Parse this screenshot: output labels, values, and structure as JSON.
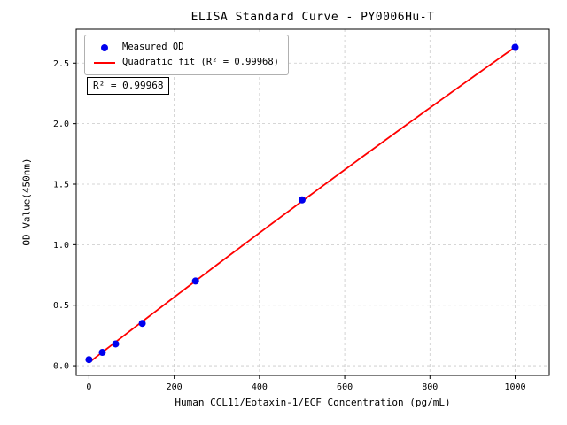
{
  "chart_data": {
    "type": "scatter",
    "title": "ELISA Standard Curve - PY0006Hu-T",
    "xlabel": "Human CCL11/Eotaxin-1/ECF Concentration (pg/mL)",
    "ylabel": "OD Value(450nm)",
    "xlim": [
      -30,
      1080
    ],
    "ylim": [
      -0.08,
      2.78
    ],
    "xticks": [
      0,
      200,
      400,
      600,
      800,
      1000
    ],
    "xticklabels": [
      "0",
      "200",
      "400",
      "600",
      "800",
      "1000"
    ],
    "yticks": [
      0.0,
      0.5,
      1.0,
      1.5,
      2.0,
      2.5
    ],
    "yticklabels": [
      "0.0",
      "0.5",
      "1.0",
      "1.5",
      "2.0",
      "2.5"
    ],
    "grid": true,
    "legend": {
      "position": "upper-left",
      "entries": [
        {
          "label": "Measured OD",
          "marker": "dot",
          "color": "#0000ee"
        },
        {
          "label": "Quadratic fit (R² = 0.99968)",
          "marker": "line",
          "color": "#ff0000"
        }
      ]
    },
    "annotation": "R² = 0.99968",
    "colors": {
      "points": "#0000ee",
      "fit_line": "#ff0000"
    },
    "series": [
      {
        "name": "Measured OD",
        "type": "scatter",
        "x": [
          0,
          31.25,
          62.5,
          125,
          250,
          500,
          1000
        ],
        "y": [
          0.05,
          0.11,
          0.18,
          0.35,
          0.7,
          1.37,
          2.63
        ]
      },
      {
        "name": "Quadratic fit",
        "type": "line",
        "fit": "quadratic",
        "r_squared": 0.99968,
        "x_range": [
          0,
          1000
        ]
      }
    ]
  }
}
